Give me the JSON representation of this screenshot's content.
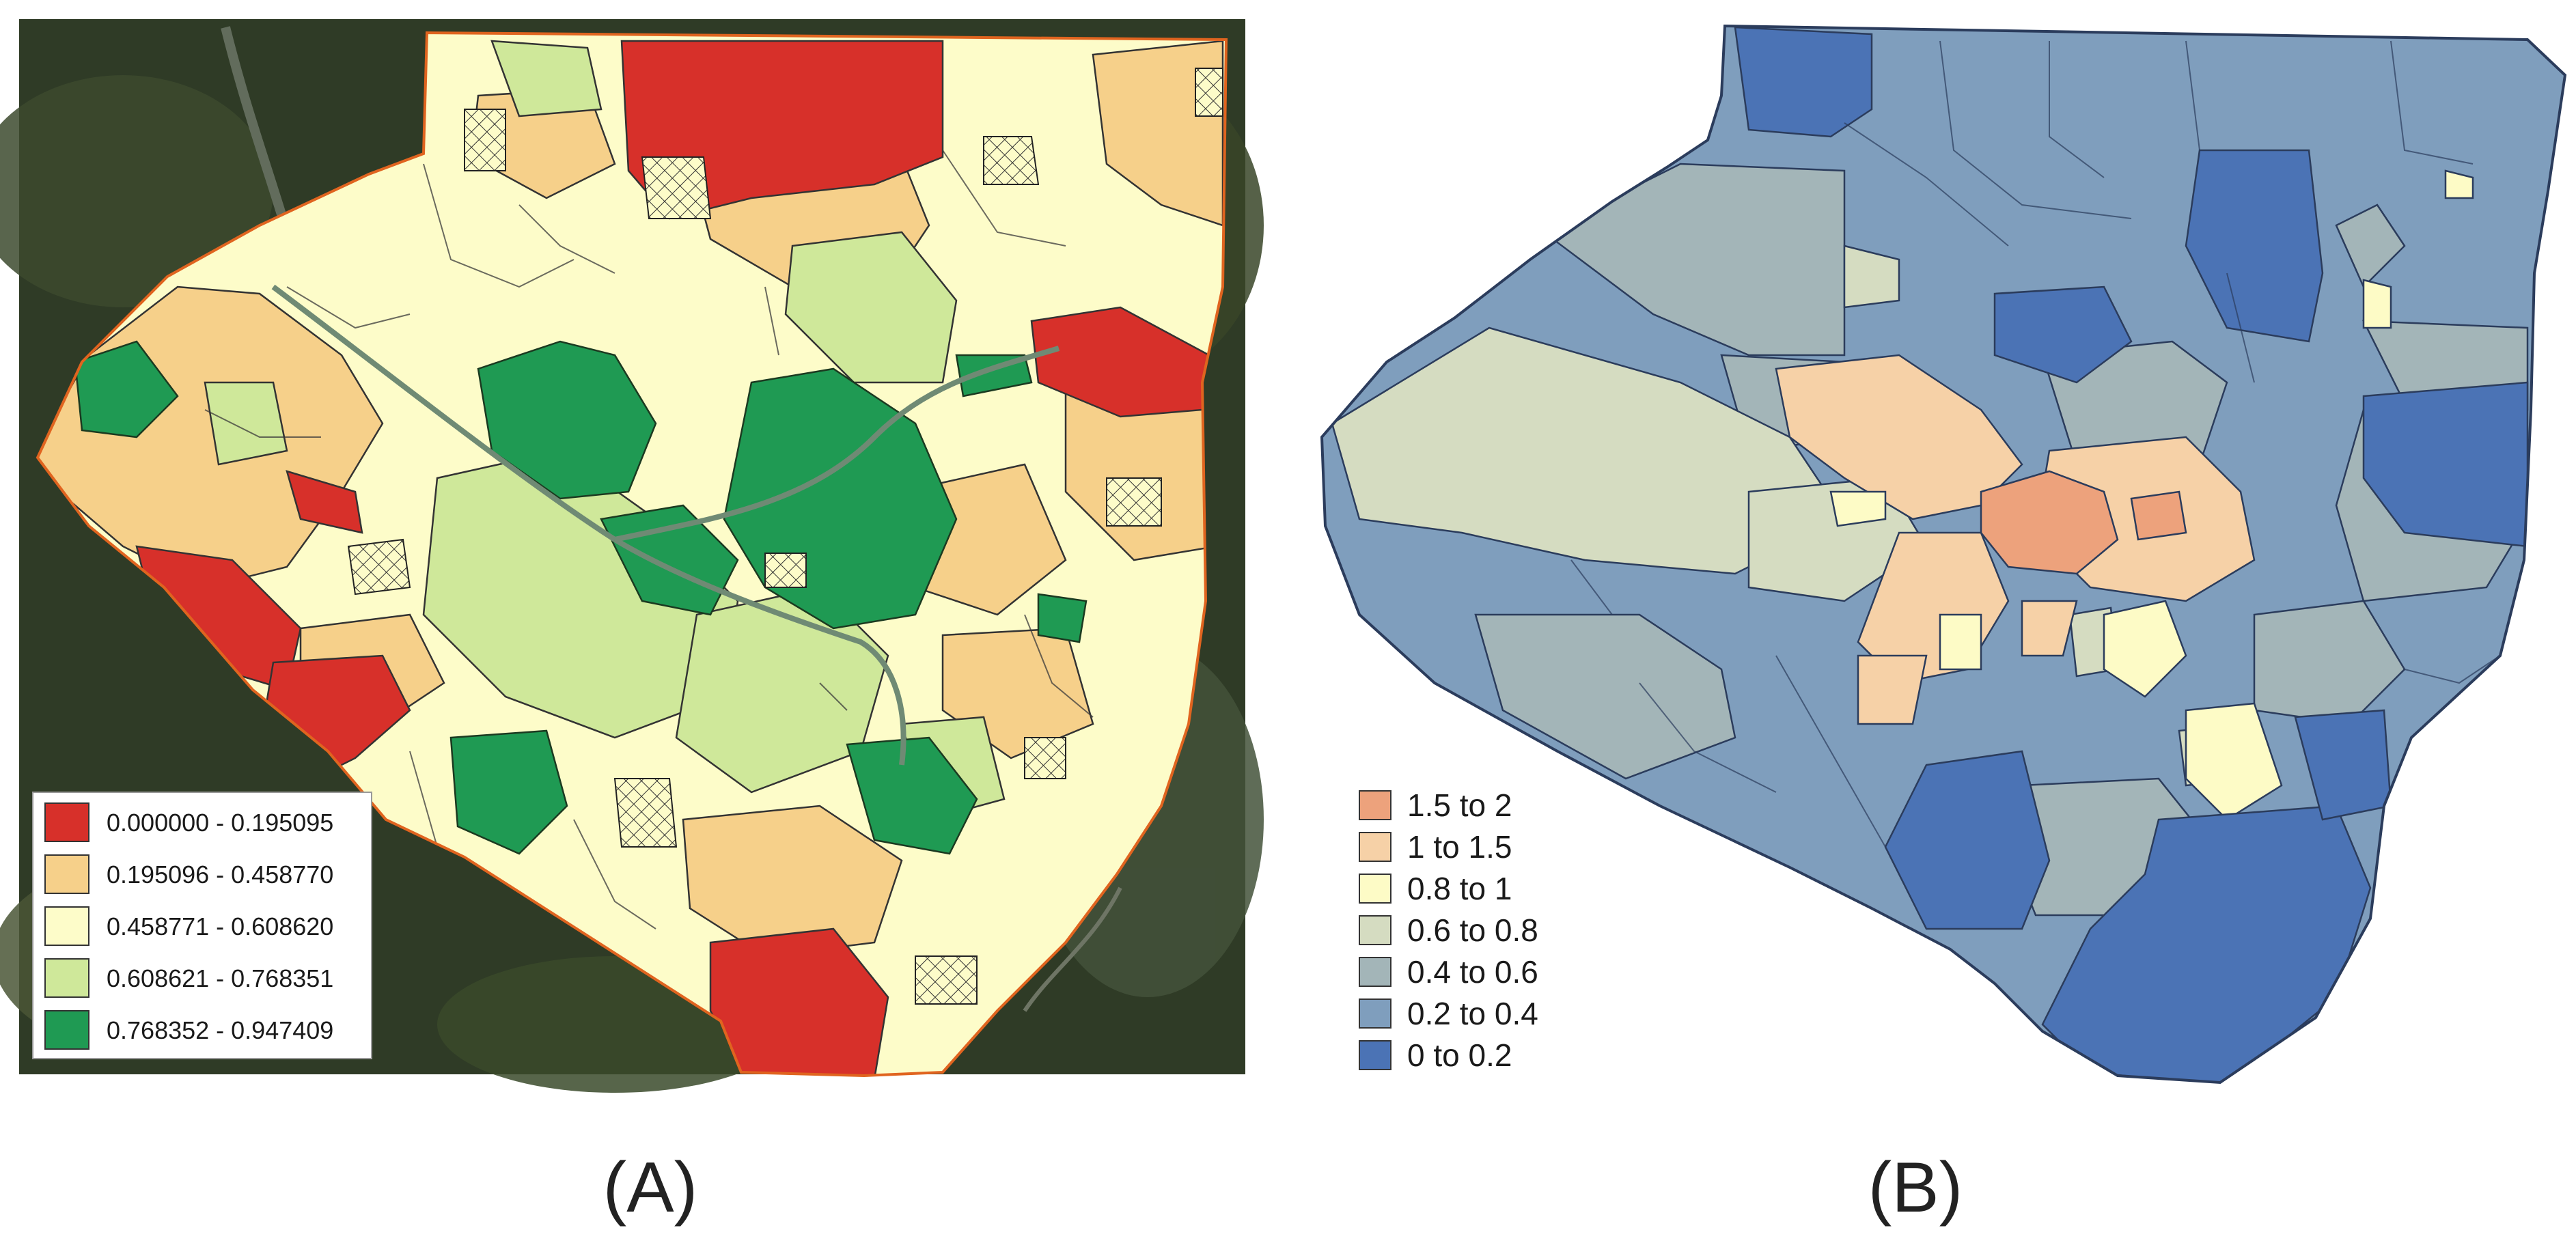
{
  "panels": [
    {
      "id": "A",
      "caption": "(A)",
      "legend": {
        "items": [
          {
            "label": "0.000000 - 0.195095",
            "color": "#d7302a"
          },
          {
            "label": "0.195096 - 0.458770",
            "color": "#f6d08a"
          },
          {
            "label": "0.458771 - 0.608620",
            "color": "#fdfcc9"
          },
          {
            "label": "0.608621 - 0.768351",
            "color": "#cfe89a"
          },
          {
            "label": "0.768352 - 0.947409",
            "color": "#1f9a53"
          }
        ]
      },
      "basemap_color": "#2c3a22",
      "boundary_color": "#e0641f",
      "hatch_pattern": "crosshatch"
    },
    {
      "id": "B",
      "caption": "(B)",
      "legend": {
        "items": [
          {
            "label": "1.5 to 2",
            "color": "#eda27c"
          },
          {
            "label": "1 to 1.5",
            "color": "#f6d1a7"
          },
          {
            "label": "0.8 to 1",
            "color": "#fdfbc6"
          },
          {
            "label": "0.6 to 0.8",
            "color": "#d5dcc1"
          },
          {
            "label": "0.4 to 0.6",
            "color": "#a3b5b8"
          },
          {
            "label": "0.2 to 0.4",
            "color": "#7f9ebd"
          },
          {
            "label": "0 to 0.2",
            "color": "#4b73b5"
          }
        ]
      },
      "boundary_color": "#2b3c5c"
    }
  ]
}
